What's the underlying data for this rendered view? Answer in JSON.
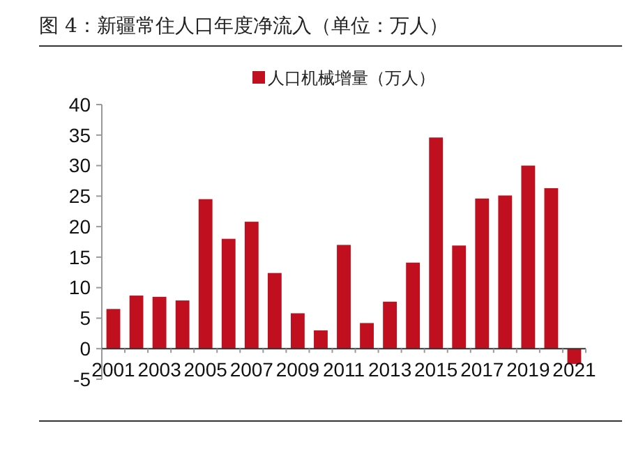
{
  "chart_data": {
    "type": "bar",
    "title": "图 4：新疆常住人口年度净流入（单位：万人）",
    "categories": [
      "2001",
      null,
      "2003",
      null,
      "2005",
      null,
      "2007",
      null,
      "2009",
      null,
      "2011",
      null,
      "2013",
      null,
      "2015",
      null,
      "2017",
      null,
      "2019",
      null,
      "2021"
    ],
    "series": [
      {
        "name": "人口机械增量（万人）",
        "color": "#c00f1e",
        "values": [
          6.5,
          8.7,
          8.5,
          7.9,
          24.5,
          18.0,
          20.8,
          12.4,
          5.8,
          3.0,
          17.0,
          4.2,
          7.7,
          14.1,
          34.6,
          16.9,
          24.6,
          25.1,
          30.0,
          26.3,
          -2.5
        ]
      }
    ],
    "ylim": [
      -5,
      40
    ],
    "yticks": [
      -5,
      0,
      5,
      10,
      15,
      20,
      25,
      30,
      35,
      40
    ],
    "legend": "top",
    "grid": false
  }
}
